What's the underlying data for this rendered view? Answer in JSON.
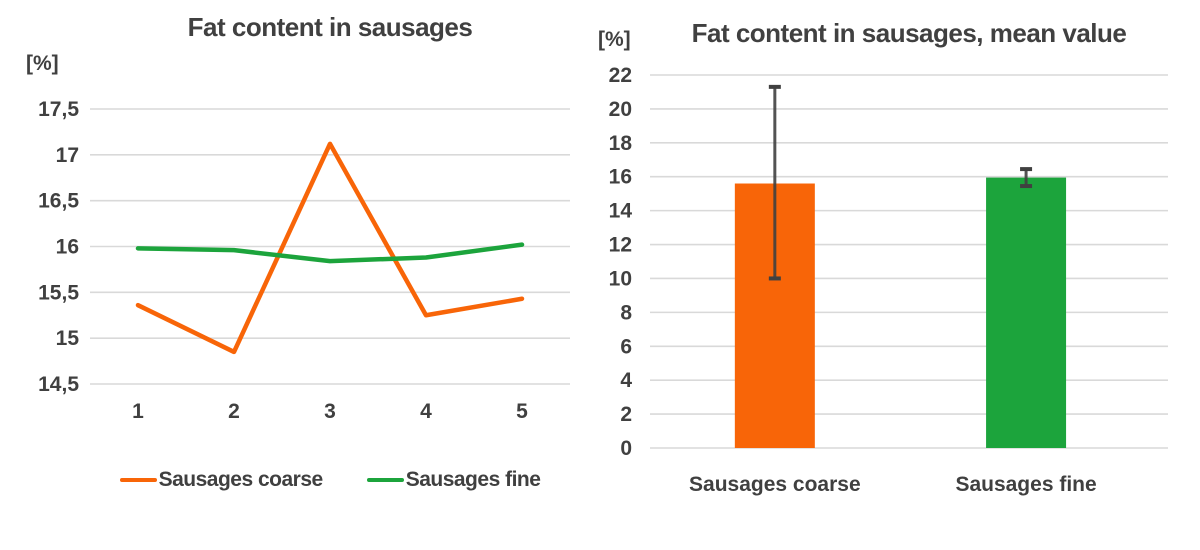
{
  "colors": {
    "background": "#FFFFFF",
    "text": "#404040",
    "gridline": "#D9D9D9",
    "orange": "#F86508",
    "green": "#1CA43C",
    "error_bar": "#404040"
  },
  "chart_data": [
    {
      "type": "line",
      "title": "Fat content in sausages",
      "ylabel": "[%]",
      "categories": [
        "1",
        "2",
        "3",
        "4",
        "5"
      ],
      "ylim": [
        14.5,
        17.5
      ],
      "yticks": [
        {
          "v": 14.5,
          "label": "14,5"
        },
        {
          "v": 15,
          "label": "15"
        },
        {
          "v": 15.5,
          "label": "15,5"
        },
        {
          "v": 16,
          "label": "16"
        },
        {
          "v": 16.5,
          "label": "16,5"
        },
        {
          "v": 17,
          "label": "17"
        },
        {
          "v": 17.5,
          "label": "17,5"
        }
      ],
      "grid": true,
      "legend_position": "bottom",
      "series": [
        {
          "name": "Sausages coarse",
          "color": "#F86508",
          "values": [
            15.36,
            14.85,
            17.12,
            15.25,
            15.43
          ]
        },
        {
          "name": "Sausages fine",
          "color": "#1CA43C",
          "values": [
            15.98,
            15.96,
            15.84,
            15.88,
            16.02
          ]
        }
      ]
    },
    {
      "type": "bar",
      "title": "Fat content in sausages, mean value",
      "ylabel": "[%]",
      "categories": [
        "Sausages coarse",
        "Sausages fine"
      ],
      "ylim": [
        0,
        22
      ],
      "yticks": [
        {
          "v": 0,
          "label": "0"
        },
        {
          "v": 2,
          "label": "2"
        },
        {
          "v": 4,
          "label": "4"
        },
        {
          "v": 6,
          "label": "6"
        },
        {
          "v": 8,
          "label": "8"
        },
        {
          "v": 10,
          "label": "10"
        },
        {
          "v": 12,
          "label": "12"
        },
        {
          "v": 14,
          "label": "14"
        },
        {
          "v": 16,
          "label": "16"
        },
        {
          "v": 18,
          "label": "18"
        },
        {
          "v": 20,
          "label": "20"
        },
        {
          "v": 22,
          "label": "22"
        }
      ],
      "grid": true,
      "bars": [
        {
          "label": "Sausages coarse",
          "value": 15.6,
          "color": "#F86508",
          "error_low": 10.0,
          "error_high": 21.3
        },
        {
          "label": "Sausages fine",
          "value": 15.95,
          "color": "#1CA43C",
          "error_low": 15.45,
          "error_high": 16.45
        }
      ],
      "error_bar_color": "#404040"
    }
  ]
}
